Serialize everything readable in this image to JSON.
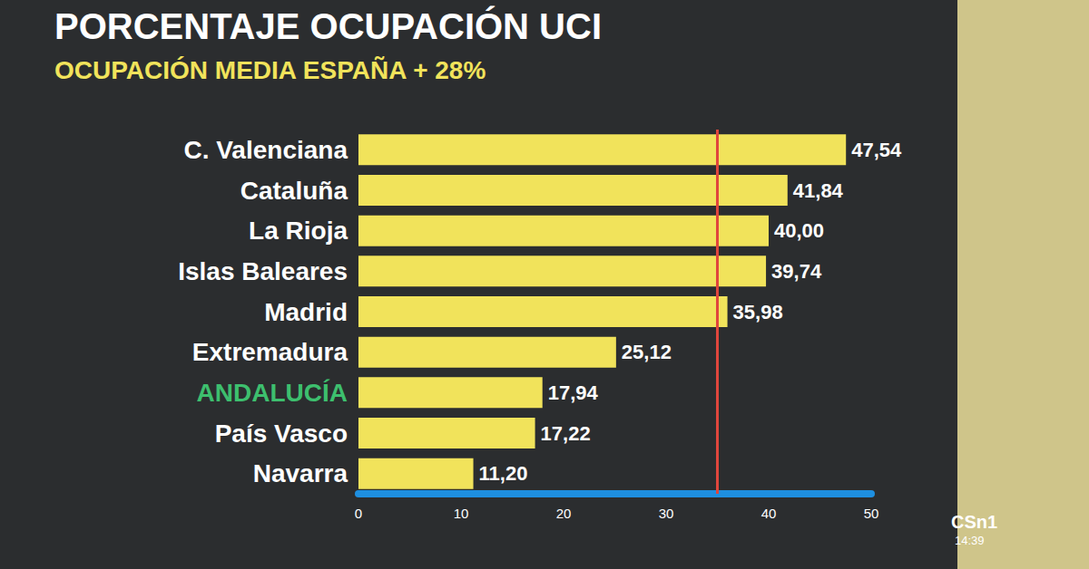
{
  "chart_data": {
    "type": "bar",
    "orientation": "horizontal",
    "title": "PORCENTAJE OCUPACIÓN UCI",
    "subtitle": "OCUPACIÓN MEDIA ESPAÑA + 28%",
    "categories": [
      "C. Valenciana",
      "Cataluña",
      "La Rioja",
      "Islas Baleares",
      "Madrid",
      "Extremadura",
      "ANDALUCÍA",
      "País Vasco",
      "Navarra"
    ],
    "values": [
      47.54,
      41.84,
      40.0,
      39.74,
      35.98,
      25.12,
      17.94,
      17.22,
      11.2
    ],
    "value_labels": [
      "47,54",
      "41,84",
      "40,00",
      "39,74",
      "35,98",
      "25,12",
      "17,94",
      "17,22",
      "11,20"
    ],
    "color": "#f1e35b",
    "data_labels": true,
    "xlim": [
      0,
      50
    ],
    "xticks": [
      0,
      10,
      20,
      30,
      40,
      50
    ],
    "grid": false,
    "reference_line": 35,
    "reference_line_color": "#e0463c",
    "highlight": {
      "category": "ANDALUCÍA",
      "color": "#3dbf6e"
    },
    "annotations": [
      "CSn1",
      "14:39"
    ]
  }
}
